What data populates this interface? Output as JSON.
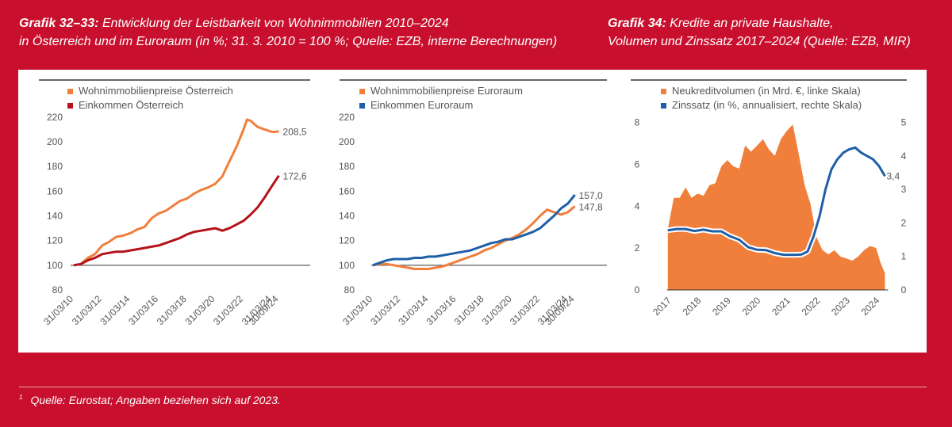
{
  "headings": {
    "left": {
      "bold": "Grafik 32–33:",
      "line1": " Entwicklung der Leistbarkeit von Wohnimmobilien 2010–2024",
      "line2": "in Österreich und im Euroraum (in %; 31. 3. 2010 = 100 %; Quelle: EZB, interne Berechnungen)"
    },
    "right": {
      "bold": "Grafik 34:",
      "line1": " Kredite an private Haushalte,",
      "line2": "Volumen und Zinssatz 2017–2024 (Quelle: EZB, MIR)"
    }
  },
  "footnote": {
    "marker": "1",
    "text": "Quelle: Eurostat; Angaben beziehen sich auf 2023."
  },
  "colors": {
    "page_bg": "#c8102e",
    "orange": "#f07f3c",
    "darkred": "#b5121b",
    "blue": "#1f5fa8",
    "grid": "#333333"
  },
  "chart_data": [
    {
      "type": "line",
      "title": "Österreich",
      "ylim": [
        80,
        225
      ],
      "yticks": [
        80,
        100,
        120,
        140,
        160,
        180,
        200,
        220
      ],
      "xlim": [
        2010.0,
        2024.75
      ],
      "xticks": [
        {
          "t": 2010.0,
          "label": "31/03/10"
        },
        {
          "t": 2012.0,
          "label": "31/03/12"
        },
        {
          "t": 2014.0,
          "label": "31/03/14"
        },
        {
          "t": 2016.0,
          "label": "31/03/16"
        },
        {
          "t": 2018.0,
          "label": "31/03/18"
        },
        {
          "t": 2020.0,
          "label": "31/03/20"
        },
        {
          "t": 2022.0,
          "label": "31/03/22"
        },
        {
          "t": 2024.0,
          "label": "31/03/24"
        },
        {
          "t": 2024.5,
          "label": "30/09/24"
        }
      ],
      "series": [
        {
          "name": "Wohnimmobilienpreise Österreich",
          "color": "#f07f3c",
          "end_label": "208,5",
          "x": [
            2010.0,
            2010.5,
            2011.0,
            2011.5,
            2012.0,
            2012.5,
            2013.0,
            2013.5,
            2014.0,
            2014.5,
            2015.0,
            2015.5,
            2016.0,
            2016.5,
            2017.0,
            2017.5,
            2018.0,
            2018.5,
            2019.0,
            2019.5,
            2020.0,
            2020.5,
            2021.0,
            2021.5,
            2022.0,
            2022.25,
            2022.5,
            2023.0,
            2023.5,
            2024.0,
            2024.25,
            2024.5
          ],
          "y": [
            100,
            101,
            106,
            109,
            116,
            119,
            123,
            124,
            126,
            129,
            131,
            138,
            142,
            144,
            148,
            152,
            154,
            158,
            161,
            163,
            166,
            172,
            184,
            196,
            210,
            218,
            217,
            212,
            210,
            208,
            208,
            208.5
          ]
        },
        {
          "name": "Einkommen Österreich",
          "color": "#b5121b",
          "end_label": "172,6",
          "x": [
            2010.0,
            2010.5,
            2011.0,
            2011.5,
            2012.0,
            2012.5,
            2013.0,
            2013.5,
            2014.0,
            2014.5,
            2015.0,
            2015.5,
            2016.0,
            2016.5,
            2017.0,
            2017.5,
            2018.0,
            2018.5,
            2019.0,
            2019.5,
            2020.0,
            2020.5,
            2021.0,
            2021.5,
            2022.0,
            2022.5,
            2023.0,
            2023.5,
            2024.0,
            2024.5
          ],
          "y": [
            100,
            101,
            104,
            106,
            109,
            110,
            111,
            111,
            112,
            113,
            114,
            115,
            116,
            118,
            120,
            122,
            125,
            127,
            128,
            129,
            130,
            128,
            130,
            133,
            136,
            141,
            147,
            155,
            164,
            172.6
          ]
        }
      ]
    },
    {
      "type": "line",
      "title": "Euroraum",
      "ylim": [
        80,
        225
      ],
      "yticks": [
        80,
        100,
        120,
        140,
        160,
        180,
        200,
        220
      ],
      "xlim": [
        2010.0,
        2024.75
      ],
      "xticks": [
        {
          "t": 2010.0,
          "label": "31/03/10"
        },
        {
          "t": 2012.0,
          "label": "31/03/12"
        },
        {
          "t": 2014.0,
          "label": "31/03/14"
        },
        {
          "t": 2016.0,
          "label": "31/03/16"
        },
        {
          "t": 2018.0,
          "label": "31/03/18"
        },
        {
          "t": 2020.0,
          "label": "31/03/20"
        },
        {
          "t": 2022.0,
          "label": "31/03/22"
        },
        {
          "t": 2024.0,
          "label": "31/03/24"
        },
        {
          "t": 2024.5,
          "label": "30/09/24"
        }
      ],
      "series": [
        {
          "name": "Wohnimmobilienpreise Euroraum",
          "color": "#f07f3c",
          "end_label": "147,8",
          "x": [
            2010.0,
            2010.5,
            2011.0,
            2011.5,
            2012.0,
            2012.5,
            2013.0,
            2013.5,
            2014.0,
            2014.5,
            2015.0,
            2015.5,
            2016.0,
            2016.5,
            2017.0,
            2017.5,
            2018.0,
            2018.5,
            2019.0,
            2019.5,
            2020.0,
            2020.5,
            2021.0,
            2021.5,
            2022.0,
            2022.5,
            2023.0,
            2023.5,
            2024.0,
            2024.5
          ],
          "y": [
            100,
            101,
            101,
            100,
            99,
            98,
            97,
            97,
            97,
            98,
            99,
            101,
            103,
            105,
            107,
            109,
            112,
            114,
            117,
            120,
            122,
            125,
            129,
            134,
            140,
            145,
            143,
            141,
            143,
            147.8
          ]
        },
        {
          "name": "Einkommen Euroraum",
          "color": "#1f5fa8",
          "end_label": "157,0",
          "x": [
            2010.0,
            2010.5,
            2011.0,
            2011.5,
            2012.0,
            2012.5,
            2013.0,
            2013.5,
            2014.0,
            2014.5,
            2015.0,
            2015.5,
            2016.0,
            2016.5,
            2017.0,
            2017.5,
            2018.0,
            2018.5,
            2019.0,
            2019.5,
            2020.0,
            2020.5,
            2021.0,
            2021.5,
            2022.0,
            2022.5,
            2023.0,
            2023.5,
            2024.0,
            2024.5
          ],
          "y": [
            100,
            102,
            104,
            105,
            105,
            105,
            106,
            106,
            107,
            107,
            108,
            109,
            110,
            111,
            112,
            114,
            116,
            118,
            119,
            121,
            121,
            123,
            125,
            127,
            130,
            135,
            140,
            146,
            150,
            157.0
          ]
        }
      ]
    },
    {
      "type": "area+line",
      "title": "Kredite an private Haushalte",
      "xlim": [
        2016.5,
        2024.5
      ],
      "xticks": [
        "2017",
        "2018",
        "2019",
        "2020",
        "2021",
        "2022",
        "2023",
        "2024"
      ],
      "y_left": {
        "lim": [
          0,
          8.7
        ],
        "ticks": [
          0,
          2,
          4,
          6,
          8
        ]
      },
      "y_right": {
        "lim": [
          0,
          5.44
        ],
        "ticks": [
          0,
          1,
          2,
          3,
          4,
          5
        ]
      },
      "series": [
        {
          "name": "Neukreditvolumen (in Mrd. €, linke Skala)",
          "color": "#f07f3c",
          "kind": "area",
          "axis": "left",
          "x": [
            2017.0,
            2017.2,
            2017.4,
            2017.6,
            2017.8,
            2018.0,
            2018.2,
            2018.4,
            2018.6,
            2018.8,
            2019.0,
            2019.2,
            2019.4,
            2019.6,
            2019.8,
            2020.0,
            2020.2,
            2020.4,
            2020.6,
            2020.8,
            2021.0,
            2021.2,
            2021.4,
            2021.6,
            2021.8,
            2022.0,
            2022.2,
            2022.4,
            2022.6,
            2022.8,
            2023.0,
            2023.2,
            2023.4,
            2023.6,
            2023.8,
            2024.0,
            2024.15,
            2024.3
          ],
          "y": [
            2.9,
            4.4,
            4.4,
            4.9,
            4.4,
            4.6,
            4.5,
            5.0,
            5.1,
            5.9,
            6.2,
            5.9,
            5.8,
            6.9,
            6.6,
            6.9,
            7.2,
            6.7,
            6.4,
            7.2,
            7.6,
            7.9,
            6.5,
            5.0,
            4.1,
            2.5,
            1.9,
            1.7,
            1.9,
            1.6,
            1.5,
            1.4,
            1.6,
            1.9,
            2.1,
            2.0,
            1.3,
            0.8
          ]
        },
        {
          "name": "Zinssatz (in %, annualisiert, rechte Skala)",
          "color": "#1f5fa8",
          "kind": "line",
          "axis": "right",
          "end_label": "3,4",
          "x": [
            2017.0,
            2017.3,
            2017.6,
            2017.9,
            2018.2,
            2018.5,
            2018.8,
            2019.1,
            2019.4,
            2019.7,
            2020.0,
            2020.3,
            2020.6,
            2020.9,
            2021.1,
            2021.3,
            2021.5,
            2021.7,
            2021.9,
            2022.1,
            2022.3,
            2022.5,
            2022.7,
            2022.9,
            2023.1,
            2023.3,
            2023.5,
            2023.7,
            2023.9,
            2024.1,
            2024.3
          ],
          "y": [
            1.78,
            1.82,
            1.82,
            1.76,
            1.8,
            1.75,
            1.75,
            1.6,
            1.5,
            1.28,
            1.2,
            1.19,
            1.1,
            1.05,
            1.05,
            1.05,
            1.06,
            1.15,
            1.6,
            2.2,
            3.0,
            3.6,
            3.9,
            4.1,
            4.2,
            4.25,
            4.1,
            4.0,
            3.9,
            3.7,
            3.4
          ]
        }
      ]
    }
  ]
}
